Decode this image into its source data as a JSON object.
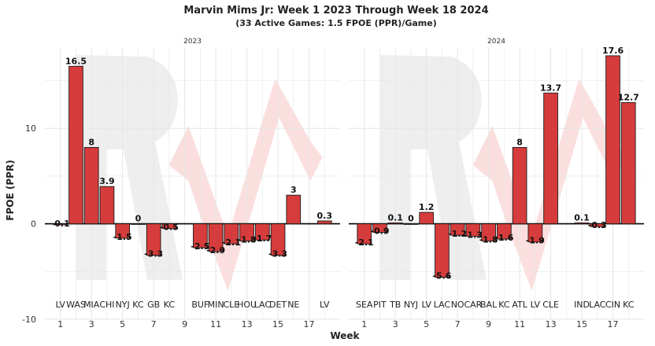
{
  "chart_data": {
    "type": "bar",
    "title": "Marvin Mims Jr: Week 1 2023 Through Week 18 2024",
    "subtitle": "(33 Active Games: 1.5 FPOE (PPR)/Game)",
    "xlabel": "Week",
    "ylabel": "FPOE (PPR)",
    "ylim": [
      -10,
      18.5
    ],
    "yticks": [
      -10,
      0,
      10
    ],
    "xticks": [
      1,
      3,
      5,
      7,
      9,
      11,
      13,
      15,
      17
    ],
    "xlim": [
      0,
      19
    ],
    "bar_color": "#d63c3c",
    "panels": [
      {
        "label": "2023",
        "bars": [
          {
            "week": 1,
            "opp": "LV",
            "value": -0.1,
            "label": "-0.1"
          },
          {
            "week": 2,
            "opp": "WAS",
            "value": 16.5,
            "label": "16.5"
          },
          {
            "week": 3,
            "opp": "MIA",
            "value": 8,
            "label": "8"
          },
          {
            "week": 4,
            "opp": "CHI",
            "value": 3.9,
            "label": "3.9"
          },
          {
            "week": 5,
            "opp": "NYJ",
            "value": -1.5,
            "label": "-1.5"
          },
          {
            "week": 6,
            "opp": "KC",
            "value": 0,
            "label": "0"
          },
          {
            "week": 7,
            "opp": "GB",
            "value": -3.3,
            "label": "-3.3"
          },
          {
            "week": 8,
            "opp": "KC",
            "value": -0.5,
            "label": "-0.5"
          },
          {
            "week": 10,
            "opp": "BUF",
            "value": -2.5,
            "label": "-2.5"
          },
          {
            "week": 11,
            "opp": "MIN",
            "value": -2.9,
            "label": "-2.9"
          },
          {
            "week": 12,
            "opp": "CLE",
            "value": -2.1,
            "label": "-2.1"
          },
          {
            "week": 13,
            "opp": "HOU",
            "value": -1.8,
            "label": "-1.8"
          },
          {
            "week": 14,
            "opp": "LAC",
            "value": -1.7,
            "label": "-1.7"
          },
          {
            "week": 15,
            "opp": "DET",
            "value": -3.3,
            "label": "-3.3"
          },
          {
            "week": 16,
            "opp": "NE",
            "value": 3,
            "label": "3"
          },
          {
            "week": 18,
            "opp": "LV",
            "value": 0.3,
            "label": "0.3"
          }
        ]
      },
      {
        "label": "2024",
        "bars": [
          {
            "week": 1,
            "opp": "SEA",
            "value": -2.1,
            "label": "-2.1"
          },
          {
            "week": 2,
            "opp": "PIT",
            "value": -0.9,
            "label": "-0.9"
          },
          {
            "week": 3,
            "opp": "TB",
            "value": 0.1,
            "label": "0.1"
          },
          {
            "week": 4,
            "opp": "NYJ",
            "value": 0,
            "label": "0"
          },
          {
            "week": 5,
            "opp": "LV",
            "value": 1.2,
            "label": "1.2"
          },
          {
            "week": 6,
            "opp": "LAC",
            "value": -5.6,
            "label": "-5.6"
          },
          {
            "week": 7,
            "opp": "NO",
            "value": -1.2,
            "label": "-1.2"
          },
          {
            "week": 8,
            "opp": "CAR",
            "value": -1.3,
            "label": "-1.3"
          },
          {
            "week": 9,
            "opp": "BAL",
            "value": -1.8,
            "label": "-1.8"
          },
          {
            "week": 10,
            "opp": "KC",
            "value": -1.6,
            "label": "-1.6"
          },
          {
            "week": 11,
            "opp": "ATL",
            "value": 8,
            "label": "8"
          },
          {
            "week": 12,
            "opp": "LV",
            "value": -1.9,
            "label": "-1.9"
          },
          {
            "week": 13,
            "opp": "CLE",
            "value": 13.7,
            "label": "13.7"
          },
          {
            "week": 15,
            "opp": "IND",
            "value": 0.1,
            "label": "0.1"
          },
          {
            "week": 16,
            "opp": "LAC",
            "value": -0.3,
            "label": "-0.3"
          },
          {
            "week": 17,
            "opp": "CIN",
            "value": 17.6,
            "label": "17.6"
          },
          {
            "week": 18,
            "opp": "KC",
            "value": 12.7,
            "label": "12.7"
          }
        ]
      }
    ]
  }
}
